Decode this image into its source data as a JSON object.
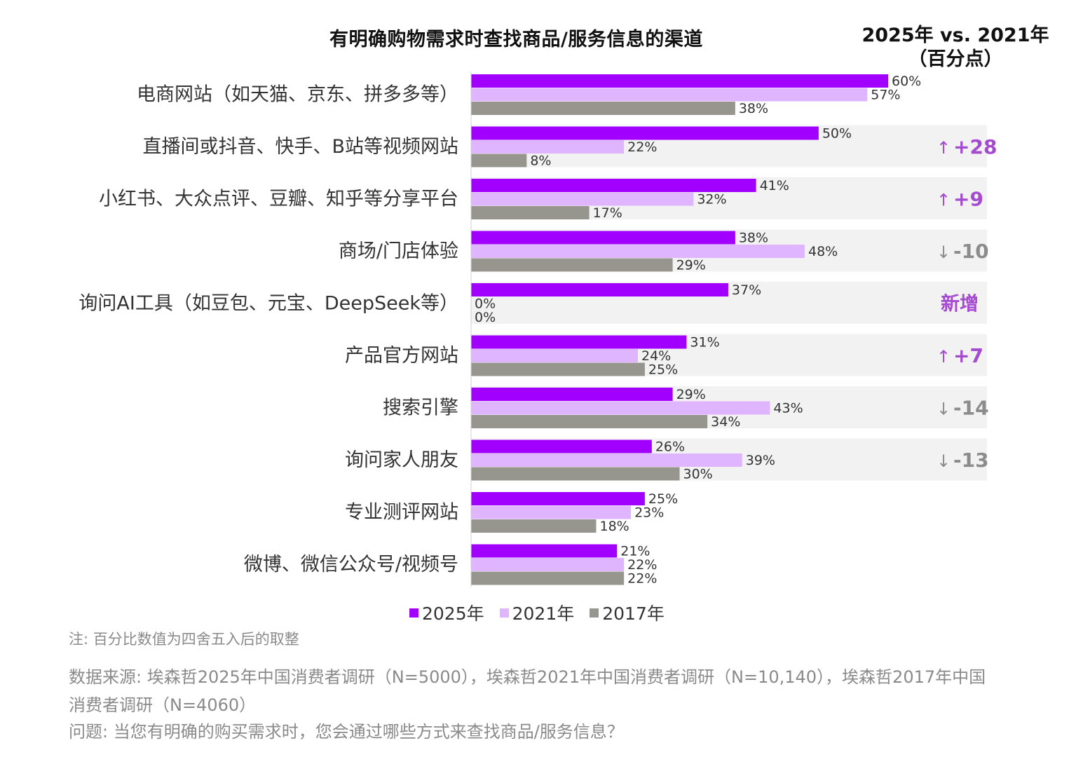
{
  "chart_data": {
    "type": "bar",
    "orientation": "horizontal",
    "title": "有明确购物需求时查找商品/服务信息的渠道",
    "categories": [
      "电商网站（如天猫、京东、拼多多等）",
      "直播间或抖音、快手、B站等视频网站",
      "小红书、大众点评、豆瓣、知乎等分享平台",
      "商场/门店体验",
      "询问AI工具（如豆包、元宝、DeepSeek等）",
      "产品官方网站",
      "搜索引擎",
      "询问家人朋友",
      "专业测评网站",
      "微博、微信公众号/视频号"
    ],
    "series": [
      {
        "name": "2025年",
        "color": "#a100ff",
        "values": [
          60,
          50,
          41,
          38,
          37,
          31,
          29,
          26,
          25,
          21
        ]
      },
      {
        "name": "2021年",
        "color": "#e0b5ff",
        "values": [
          57,
          22,
          32,
          48,
          0,
          24,
          43,
          39,
          23,
          22
        ]
      },
      {
        "name": "2017年",
        "color": "#96968e",
        "values": [
          38,
          8,
          17,
          29,
          0,
          25,
          34,
          30,
          18,
          22
        ]
      }
    ],
    "value_suffix": "%",
    "xlim": [
      0,
      60
    ],
    "diff_header": [
      "2025年 vs. 2021年",
      "（百分点）"
    ],
    "diffs": [
      null,
      {
        "arrow": "up",
        "text": "+28"
      },
      {
        "arrow": "up",
        "text": "+9"
      },
      {
        "arrow": "down",
        "text": "-10"
      },
      {
        "arrow": "none",
        "text": "新增"
      },
      {
        "arrow": "up",
        "text": "+7"
      },
      {
        "arrow": "down",
        "text": "-14"
      },
      {
        "arrow": "down",
        "text": "-13"
      },
      null,
      null
    ],
    "colors": {
      "up": "#a44bd0",
      "down": "#8c8c8c",
      "new": "#a44bd0",
      "band": "#f2f2f2"
    }
  },
  "note": "注: 百分比数值为四舍五入后的取整",
  "source": "数据来源: 埃森哲2025年中国消费者调研（N=5000），埃森哲2021年中国消费者调研（N=10,140），埃森哲2017年中国消费者调研（N=4060）",
  "question": "问题: 当您有明确的购买需求时，您会通过哪些方式来查找商品/服务信息？"
}
